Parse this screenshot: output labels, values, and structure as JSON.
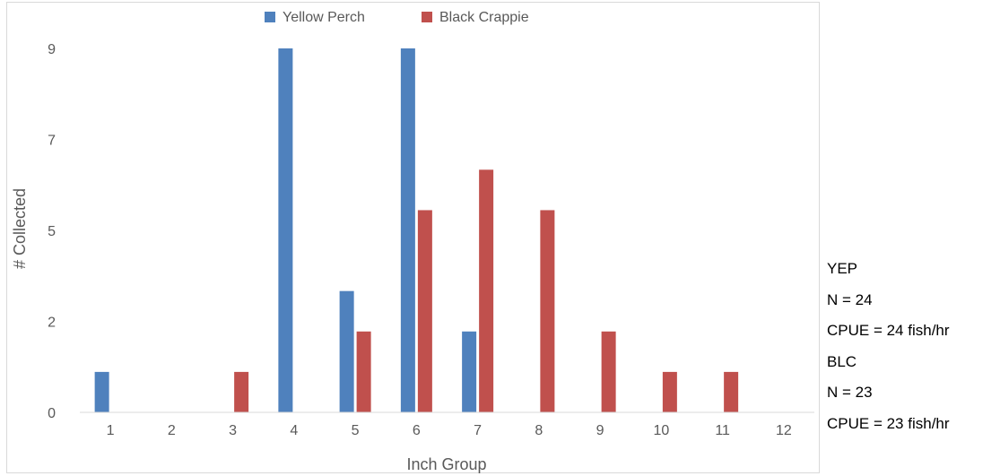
{
  "chart_data": {
    "type": "bar",
    "title": "",
    "xlabel": "Inch Group",
    "ylabel": "# Collected",
    "categories": [
      "1",
      "2",
      "3",
      "4",
      "5",
      "6",
      "7",
      "8",
      "9",
      "10",
      "11",
      "12"
    ],
    "y_ticks": [
      "0",
      "2",
      "5",
      "7",
      "9"
    ],
    "ylim": [
      0,
      9
    ],
    "grid": false,
    "legend_position": "top",
    "series": [
      {
        "name": "Yellow Perch",
        "color": "#4f81bd",
        "values": [
          1,
          0,
          0,
          9,
          3,
          9,
          2,
          0,
          0,
          0,
          0,
          0
        ]
      },
      {
        "name": "Black Crappie",
        "color": "#c0504d",
        "values": [
          0,
          0,
          1,
          0,
          2,
          5,
          6,
          5,
          2,
          1,
          1,
          0
        ]
      }
    ]
  },
  "stats": {
    "yep_label": "YEP",
    "yep_n": "N = 24",
    "yep_cpue": "CPUE = 24 fish/hr",
    "blc_label": "BLC",
    "blc_n": "N = 23",
    "blc_cpue": "CPUE = 23 fish/hr"
  }
}
